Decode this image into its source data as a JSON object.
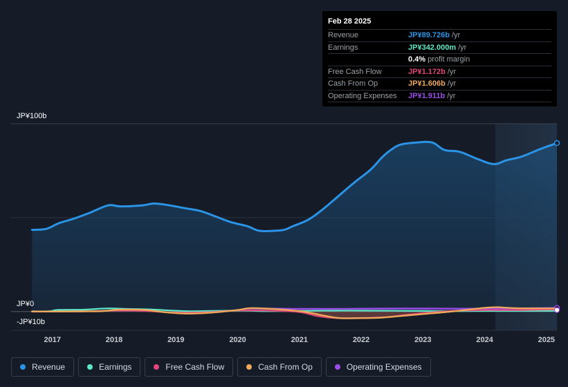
{
  "chart_data": {
    "type": "area",
    "title": "",
    "y_labels": [
      "JP¥100b",
      "JP¥0",
      "-JP¥10b"
    ],
    "ylim": [
      -10,
      100
    ],
    "xlim": [
      2016.33,
      2025.17
    ],
    "x_ticks": [
      "2017",
      "2018",
      "2019",
      "2020",
      "2021",
      "2022",
      "2023",
      "2024",
      "2025"
    ],
    "x_tick_values": [
      2017,
      2018,
      2019,
      2020,
      2021,
      2022,
      2023,
      2024,
      2025
    ],
    "forecast_start": 2024.17,
    "series": [
      {
        "name": "Revenue",
        "color": "#2b94e6",
        "x": [
          2016.67,
          2016.9,
          2017.1,
          2017.35,
          2017.6,
          2017.9,
          2018.1,
          2018.45,
          2018.65,
          2018.9,
          2019.15,
          2019.4,
          2019.65,
          2019.9,
          2020.15,
          2020.35,
          2020.6,
          2020.75,
          2020.9,
          2021.15,
          2021.4,
          2021.65,
          2021.9,
          2022.15,
          2022.35,
          2022.5,
          2022.65,
          2022.9,
          2023.15,
          2023.35,
          2023.6,
          2023.9,
          2024.15,
          2024.35,
          2024.6,
          2024.9,
          2025.17
        ],
        "values": [
          43.5,
          44,
          47,
          49.5,
          52.5,
          56.5,
          56,
          56.5,
          57.5,
          56.5,
          55,
          53.5,
          50.5,
          47.5,
          45.5,
          43,
          43,
          43.5,
          45.5,
          49,
          55,
          62,
          69,
          75.5,
          82.5,
          86.5,
          89,
          90,
          90,
          86,
          85,
          81,
          78.5,
          80.5,
          82.5,
          86.5,
          89.7
        ]
      },
      {
        "name": "Earnings",
        "color": "#5ee8c8",
        "x": [
          2016.67,
          2016.95,
          2017.1,
          2017.5,
          2017.9,
          2018.2,
          2018.55,
          2018.9,
          2019.2,
          2019.5,
          2019.9,
          2020.2,
          2020.4,
          2020.8,
          2021.2,
          2021.6,
          2022.0,
          2022.5,
          2023.0,
          2023.5,
          2024.0,
          2024.5,
          2025.17
        ],
        "values": [
          0.1,
          0.2,
          0.9,
          1.0,
          1.7,
          1.4,
          1.2,
          0.6,
          0.2,
          0.3,
          0.5,
          0.5,
          0.2,
          0.3,
          0.4,
          0.5,
          0.5,
          0.4,
          0.3,
          0.2,
          0.3,
          0.3,
          0.34
        ]
      },
      {
        "name": "Free Cash Flow",
        "color": "#e2457a",
        "x": [
          2016.67,
          2017.0,
          2017.5,
          2018.0,
          2018.5,
          2019.0,
          2019.5,
          2020.0,
          2020.5,
          2021.0,
          2021.3,
          2021.6,
          2022.0,
          2022.4,
          2022.8,
          2023.2,
          2023.6,
          2024.0,
          2024.5,
          2025.17
        ],
        "values": [
          0,
          0,
          0,
          0.5,
          0.3,
          -0.6,
          -0.4,
          0.6,
          0.5,
          -0.3,
          -2.5,
          -3.5,
          -3.4,
          -3.0,
          -1.5,
          -0.3,
          0.5,
          0.8,
          0.8,
          1.17
        ]
      },
      {
        "name": "Cash From Op",
        "color": "#efa85a",
        "x": [
          2016.67,
          2017.0,
          2017.5,
          2017.8,
          2018.1,
          2018.5,
          2018.8,
          2019.2,
          2019.6,
          2020.0,
          2020.2,
          2020.5,
          2020.8,
          2021.1,
          2021.4,
          2021.65,
          2022.0,
          2022.3,
          2022.6,
          2023.0,
          2023.3,
          2023.6,
          2024.0,
          2024.2,
          2024.5,
          2025.17
        ],
        "values": [
          0,
          0,
          0.1,
          0.2,
          1.0,
          0.8,
          -0.3,
          -1.1,
          -0.5,
          0.8,
          1.8,
          1.5,
          0.8,
          -0.2,
          -2.2,
          -3.5,
          -3.5,
          -3.3,
          -2.5,
          -1.3,
          -0.5,
          0.5,
          2.0,
          2.3,
          1.8,
          1.61
        ]
      },
      {
        "name": "Operating Expenses",
        "color": "#9b4de9",
        "x": [
          2020.15,
          2020.4,
          2020.7,
          2021.0,
          2021.5,
          2022.0,
          2022.5,
          2023.0,
          2023.5,
          2024.0,
          2024.5,
          2025.17
        ],
        "values": [
          1.6,
          1.6,
          1.5,
          1.4,
          1.4,
          1.5,
          1.6,
          1.6,
          1.5,
          1.6,
          1.7,
          1.91
        ]
      }
    ]
  },
  "tooltip": {
    "date": "Feb 28 2025",
    "rows": [
      {
        "label": "Revenue",
        "value": "JP¥89.726b",
        "unit": "/yr",
        "color": "#2b94e6"
      },
      {
        "label": "Earnings",
        "value": "JP¥342.000m",
        "unit": "/yr",
        "color": "#5ee8c8"
      },
      {
        "label": "",
        "value": "0.4%",
        "unit": "profit margin",
        "color": "#ffffff"
      },
      {
        "label": "Free Cash Flow",
        "value": "JP¥1.172b",
        "unit": "/yr",
        "color": "#e2457a"
      },
      {
        "label": "Cash From Op",
        "value": "JP¥1.606b",
        "unit": "/yr",
        "color": "#efa85a"
      },
      {
        "label": "Operating Expenses",
        "value": "JP¥1.911b",
        "unit": "/yr",
        "color": "#9b4de9"
      }
    ]
  },
  "legend": [
    {
      "label": "Revenue",
      "color": "#2b94e6"
    },
    {
      "label": "Earnings",
      "color": "#5ee8c8"
    },
    {
      "label": "Free Cash Flow",
      "color": "#e2457a"
    },
    {
      "label": "Cash From Op",
      "color": "#efa85a"
    },
    {
      "label": "Operating Expenses",
      "color": "#9b4de9"
    }
  ]
}
